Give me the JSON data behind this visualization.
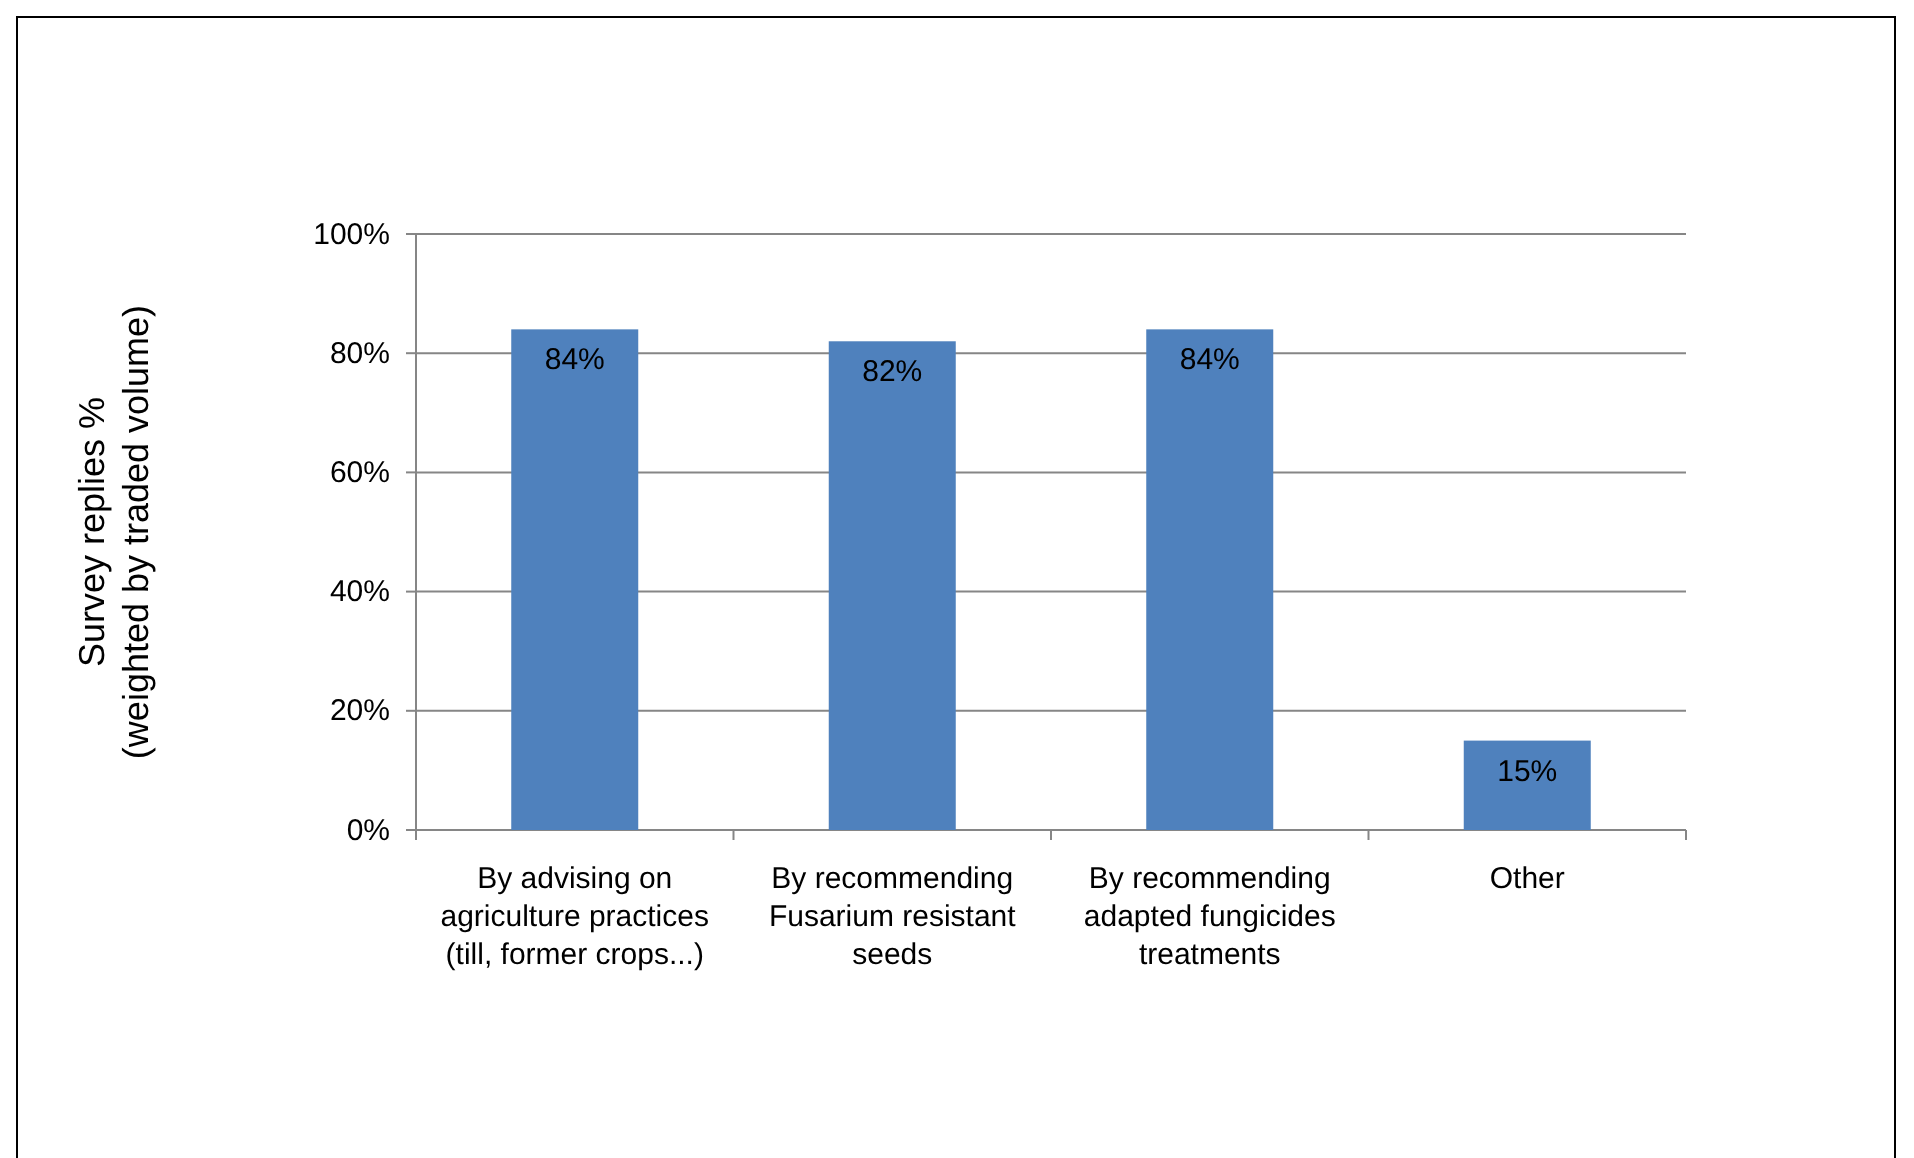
{
  "chart_data": {
    "type": "bar",
    "ylabel": "Survey replies %\n(weighted by traded volume)",
    "categories": [
      "By advising on agriculture practices (till, former crops...)",
      "By recommending Fusarium resistant seeds",
      "By recommending adapted fungicides treatments",
      "Other"
    ],
    "values": [
      84,
      82,
      84,
      15
    ],
    "value_labels": [
      "84%",
      "82%",
      "84%",
      "15%"
    ],
    "color": "#4f81bd",
    "ylim": [
      0,
      100
    ],
    "yticks": [
      {
        "value": 0,
        "label": "0%"
      },
      {
        "value": 20,
        "label": "20%"
      },
      {
        "value": 40,
        "label": "40%"
      },
      {
        "value": 60,
        "label": "60%"
      },
      {
        "value": 80,
        "label": "80%"
      },
      {
        "value": 100,
        "label": "100%"
      }
    ],
    "grid": "y"
  }
}
